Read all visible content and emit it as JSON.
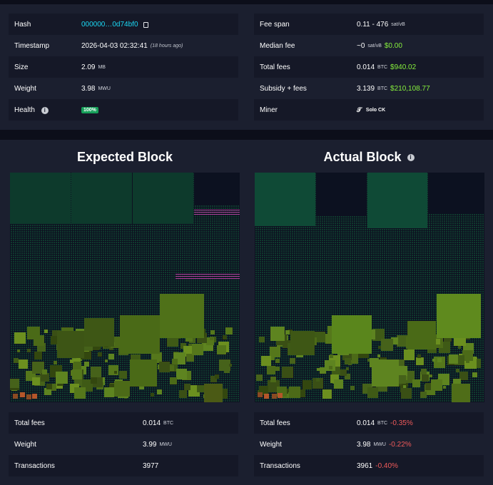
{
  "block_info": {
    "left_rows": [
      {
        "label": "Hash",
        "value": "000000…0d74bf0"
      },
      {
        "label": "Timestamp",
        "value": "2026-04-03 02:32:41",
        "note": "(18 hours ago)"
      },
      {
        "label": "Size",
        "value": "2.09",
        "unit": "MB"
      },
      {
        "label": "Weight",
        "value": "3.98",
        "unit": "MWU"
      },
      {
        "label": "Health",
        "badge": "100%"
      }
    ],
    "right_rows": [
      {
        "label": "Fee span",
        "value": "0.11 - 476",
        "unit": "sat/vB"
      },
      {
        "label": "Median fee",
        "value": "~0",
        "unit": "sat/vB",
        "fiat": "$0.00"
      },
      {
        "label": "Total fees",
        "value": "0.014",
        "unit": "BTC",
        "fiat": "$940.02"
      },
      {
        "label": "Subsidy + fees",
        "value": "3.139",
        "unit": "BTC",
        "fiat": "$210,108.77"
      },
      {
        "label": "Miner",
        "value": "Solo CK"
      }
    ]
  },
  "expected": {
    "title": "Expected Block",
    "stats": [
      {
        "label": "Total fees",
        "value": "0.014",
        "unit": "BTC"
      },
      {
        "label": "Weight",
        "value": "3.99",
        "unit": "MWU"
      },
      {
        "label": "Transactions",
        "value": "3977"
      }
    ]
  },
  "actual": {
    "title": "Actual Block",
    "stats": [
      {
        "label": "Total fees",
        "value": "0.014",
        "unit": "BTC",
        "delta": "-0.35%"
      },
      {
        "label": "Weight",
        "value": "3.98",
        "unit": "MWU",
        "delta": "-0.22%"
      },
      {
        "label": "Transactions",
        "value": "3961",
        "delta": "-0.40%"
      }
    ]
  },
  "colors": {
    "link": "#1bd8f4",
    "fiat": "#86ef3d",
    "delta_negative": "#ef5a5a",
    "health_badge": "#17a05a"
  }
}
